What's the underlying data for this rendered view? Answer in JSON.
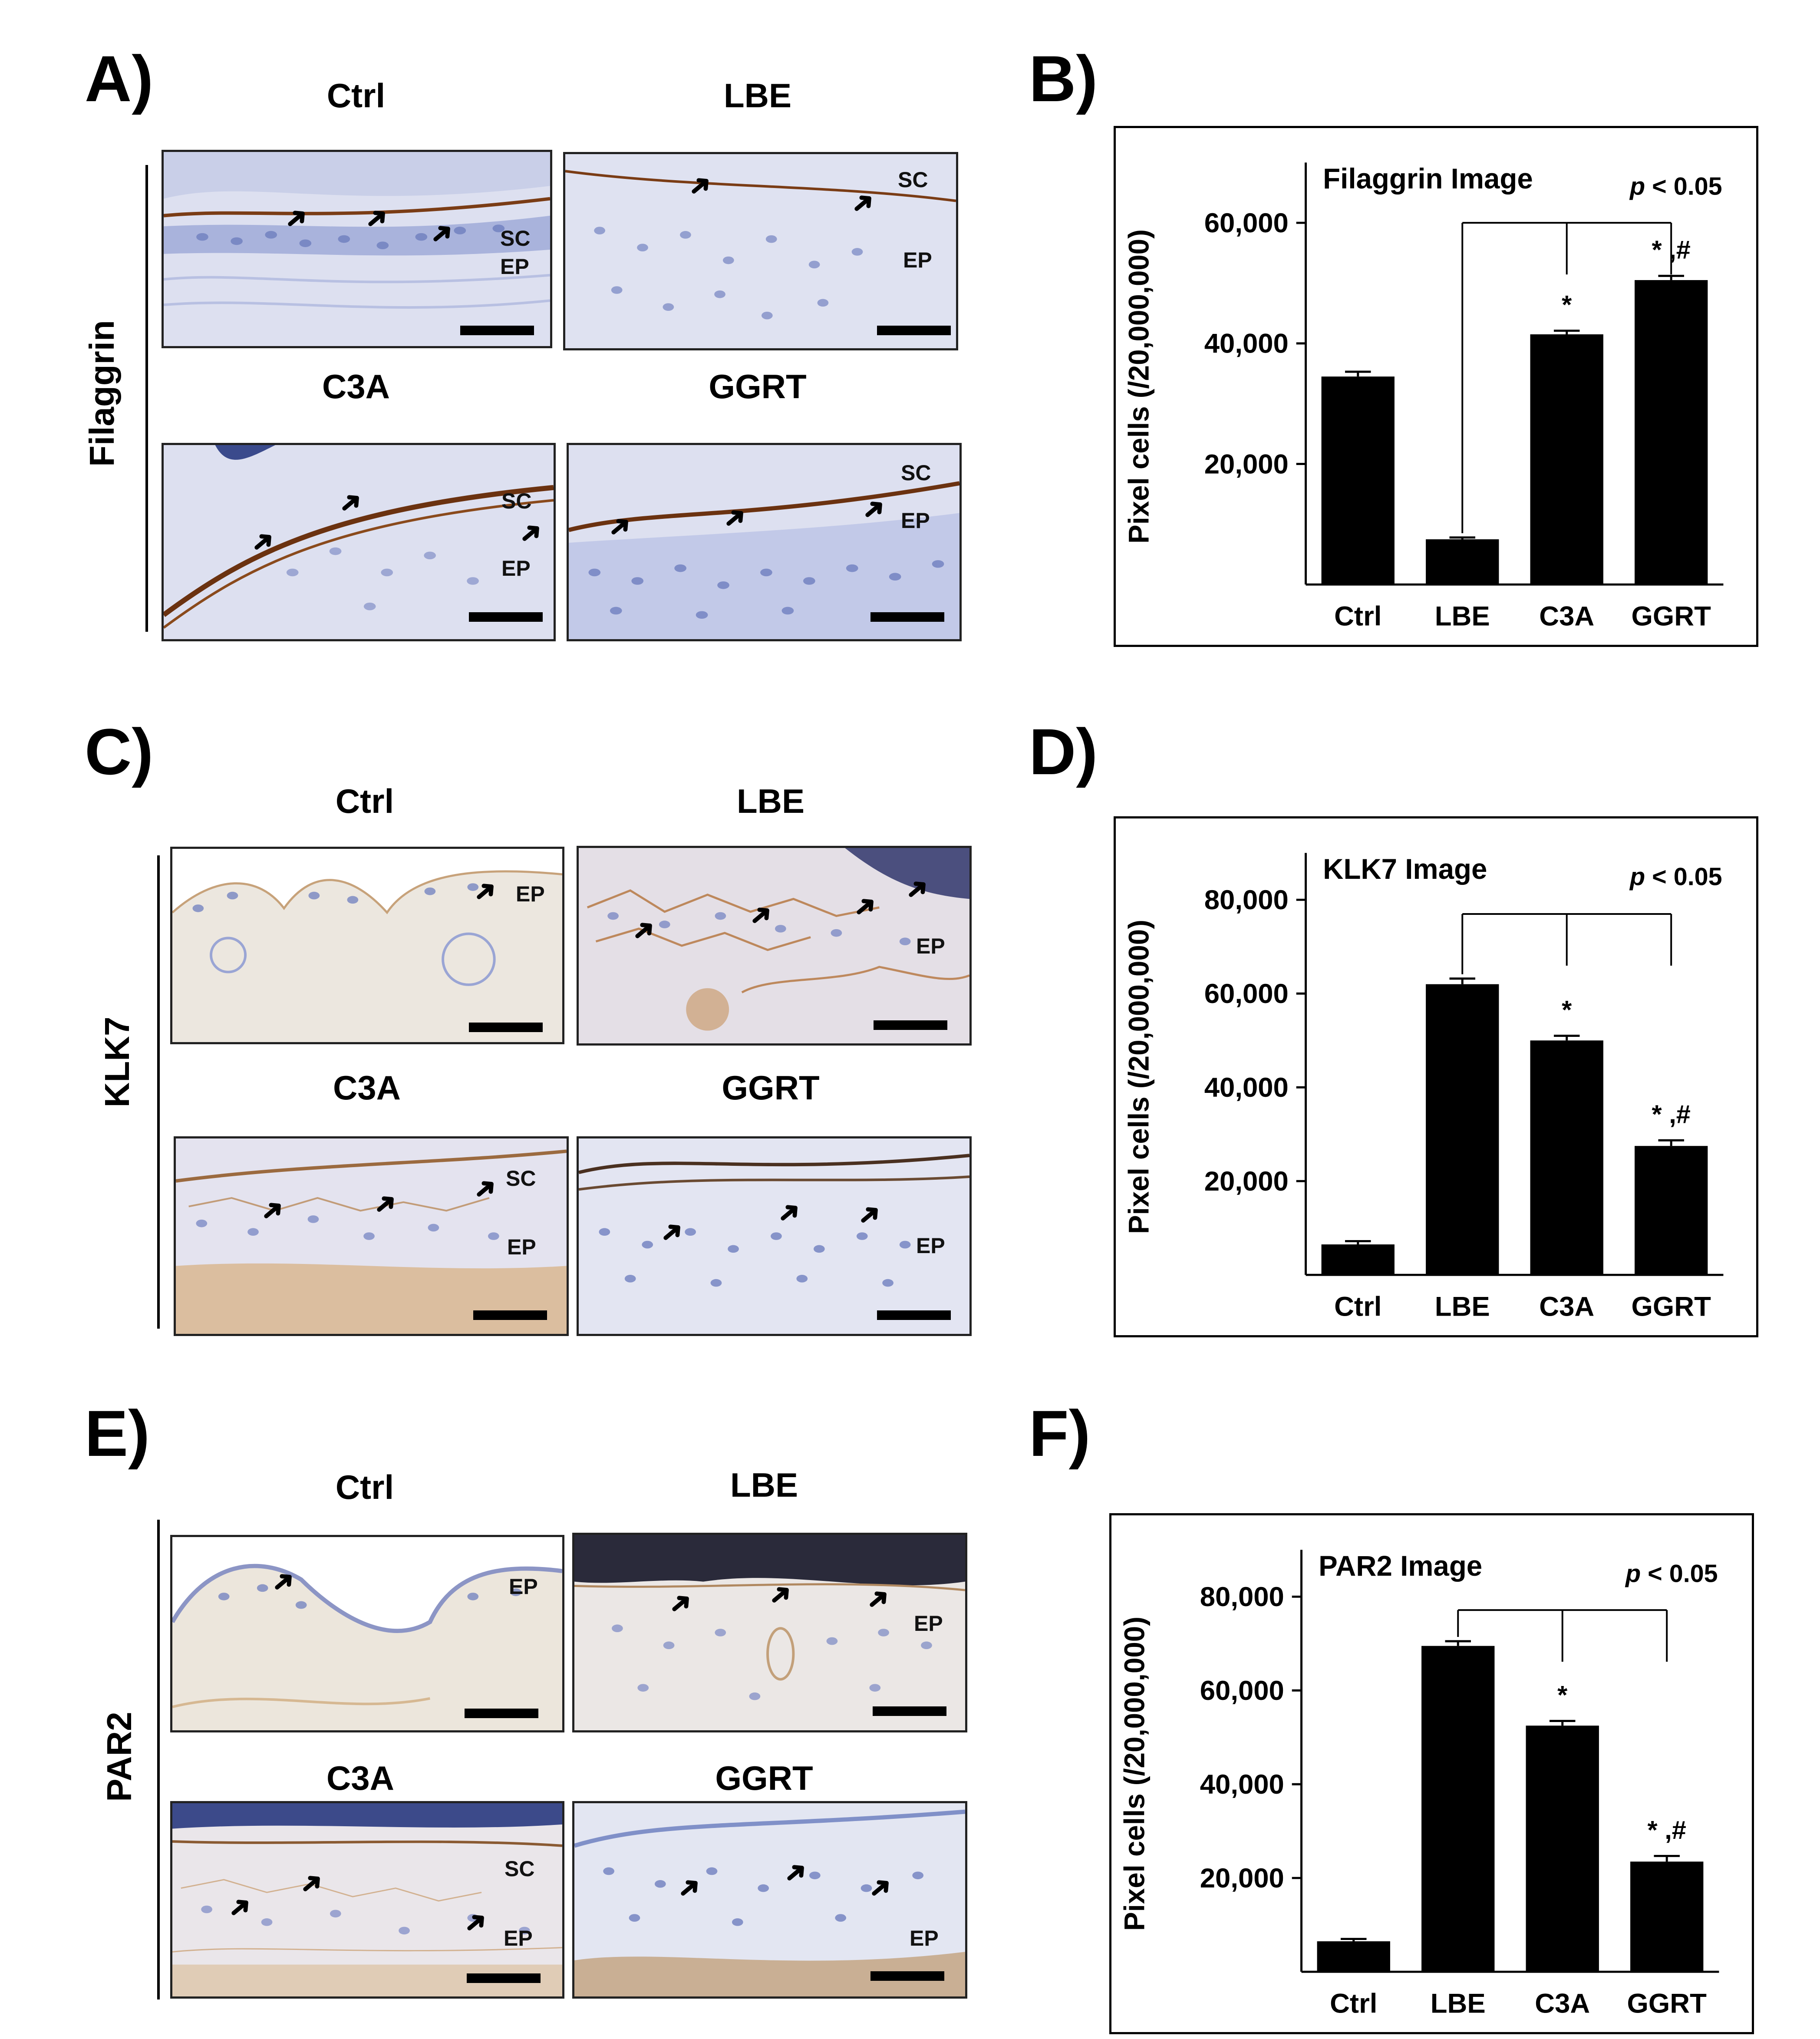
{
  "panels": {
    "A": {
      "letter": "A)",
      "stain": "Filaggrin",
      "titles": [
        "Ctrl",
        "LBE",
        "C3A",
        "GGRT"
      ]
    },
    "B": {
      "letter": "B)"
    },
    "C": {
      "letter": "C)",
      "stain": "KLK7",
      "titles": [
        "Ctrl",
        "LBE",
        "C3A",
        "GGRT"
      ]
    },
    "D": {
      "letter": "D)"
    },
    "E": {
      "letter": "E)",
      "stain": "PAR2",
      "titles": [
        "Ctrl",
        "LBE",
        "C3A",
        "GGRT"
      ]
    },
    "F": {
      "letter": "F)"
    }
  },
  "micro_labels": {
    "sc": "SC",
    "ep": "EP"
  },
  "colors": {
    "bar": "#000000",
    "hematoxylin": "#8e9ccf",
    "dab_brown": "#8a4a1c",
    "tissue_bg": "#d9dcef"
  },
  "chart_data": [
    {
      "type": "bar",
      "title": "Filaggrin Image",
      "ylabel": "Pixel cells (/20,000,000)",
      "categories": [
        "Ctrl",
        "LBE",
        "C3A",
        "GGRT"
      ],
      "values": [
        34500,
        7500,
        41500,
        50500
      ],
      "errors": [
        800,
        300,
        600,
        700
      ],
      "yticks": [
        20000,
        40000,
        60000
      ],
      "ytick_labels": [
        "20,000",
        "40,000",
        "60,000"
      ],
      "ylim": [
        0,
        70000
      ],
      "annotations": {
        "p": "p",
        "p_rest": " < 0.05",
        "sig": [
          "",
          "",
          "*",
          "* ,#"
        ]
      }
    },
    {
      "type": "bar",
      "title": "KLK7 Image",
      "ylabel": "Pixel cells (/20,000,000)",
      "categories": [
        "Ctrl",
        "LBE",
        "C3A",
        "GGRT"
      ],
      "values": [
        6500,
        62000,
        50000,
        27500
      ],
      "errors": [
        700,
        1200,
        1000,
        1200
      ],
      "yticks": [
        20000,
        40000,
        60000,
        80000
      ],
      "ytick_labels": [
        "20,000",
        "40,000",
        "60,000",
        "80,000"
      ],
      "ylim": [
        0,
        90000
      ],
      "annotations": {
        "p": "p",
        "p_rest": " < 0.05",
        "sig": [
          "",
          "",
          "*",
          "* ,#"
        ]
      }
    },
    {
      "type": "bar",
      "title": "PAR2 Image",
      "ylabel": "Pixel cells (/20,000,000)",
      "categories": [
        "Ctrl",
        "LBE",
        "C3A",
        "GGRT"
      ],
      "values": [
        6500,
        69500,
        52500,
        23500
      ],
      "errors": [
        500,
        1000,
        1000,
        1200
      ],
      "yticks": [
        20000,
        40000,
        60000,
        80000
      ],
      "ytick_labels": [
        "20,000",
        "40,000",
        "60,000",
        "80,000"
      ],
      "ylim": [
        0,
        90000
      ],
      "annotations": {
        "p": "p",
        "p_rest": " < 0.05",
        "sig": [
          "",
          "",
          "*",
          "* ,#"
        ]
      }
    }
  ]
}
